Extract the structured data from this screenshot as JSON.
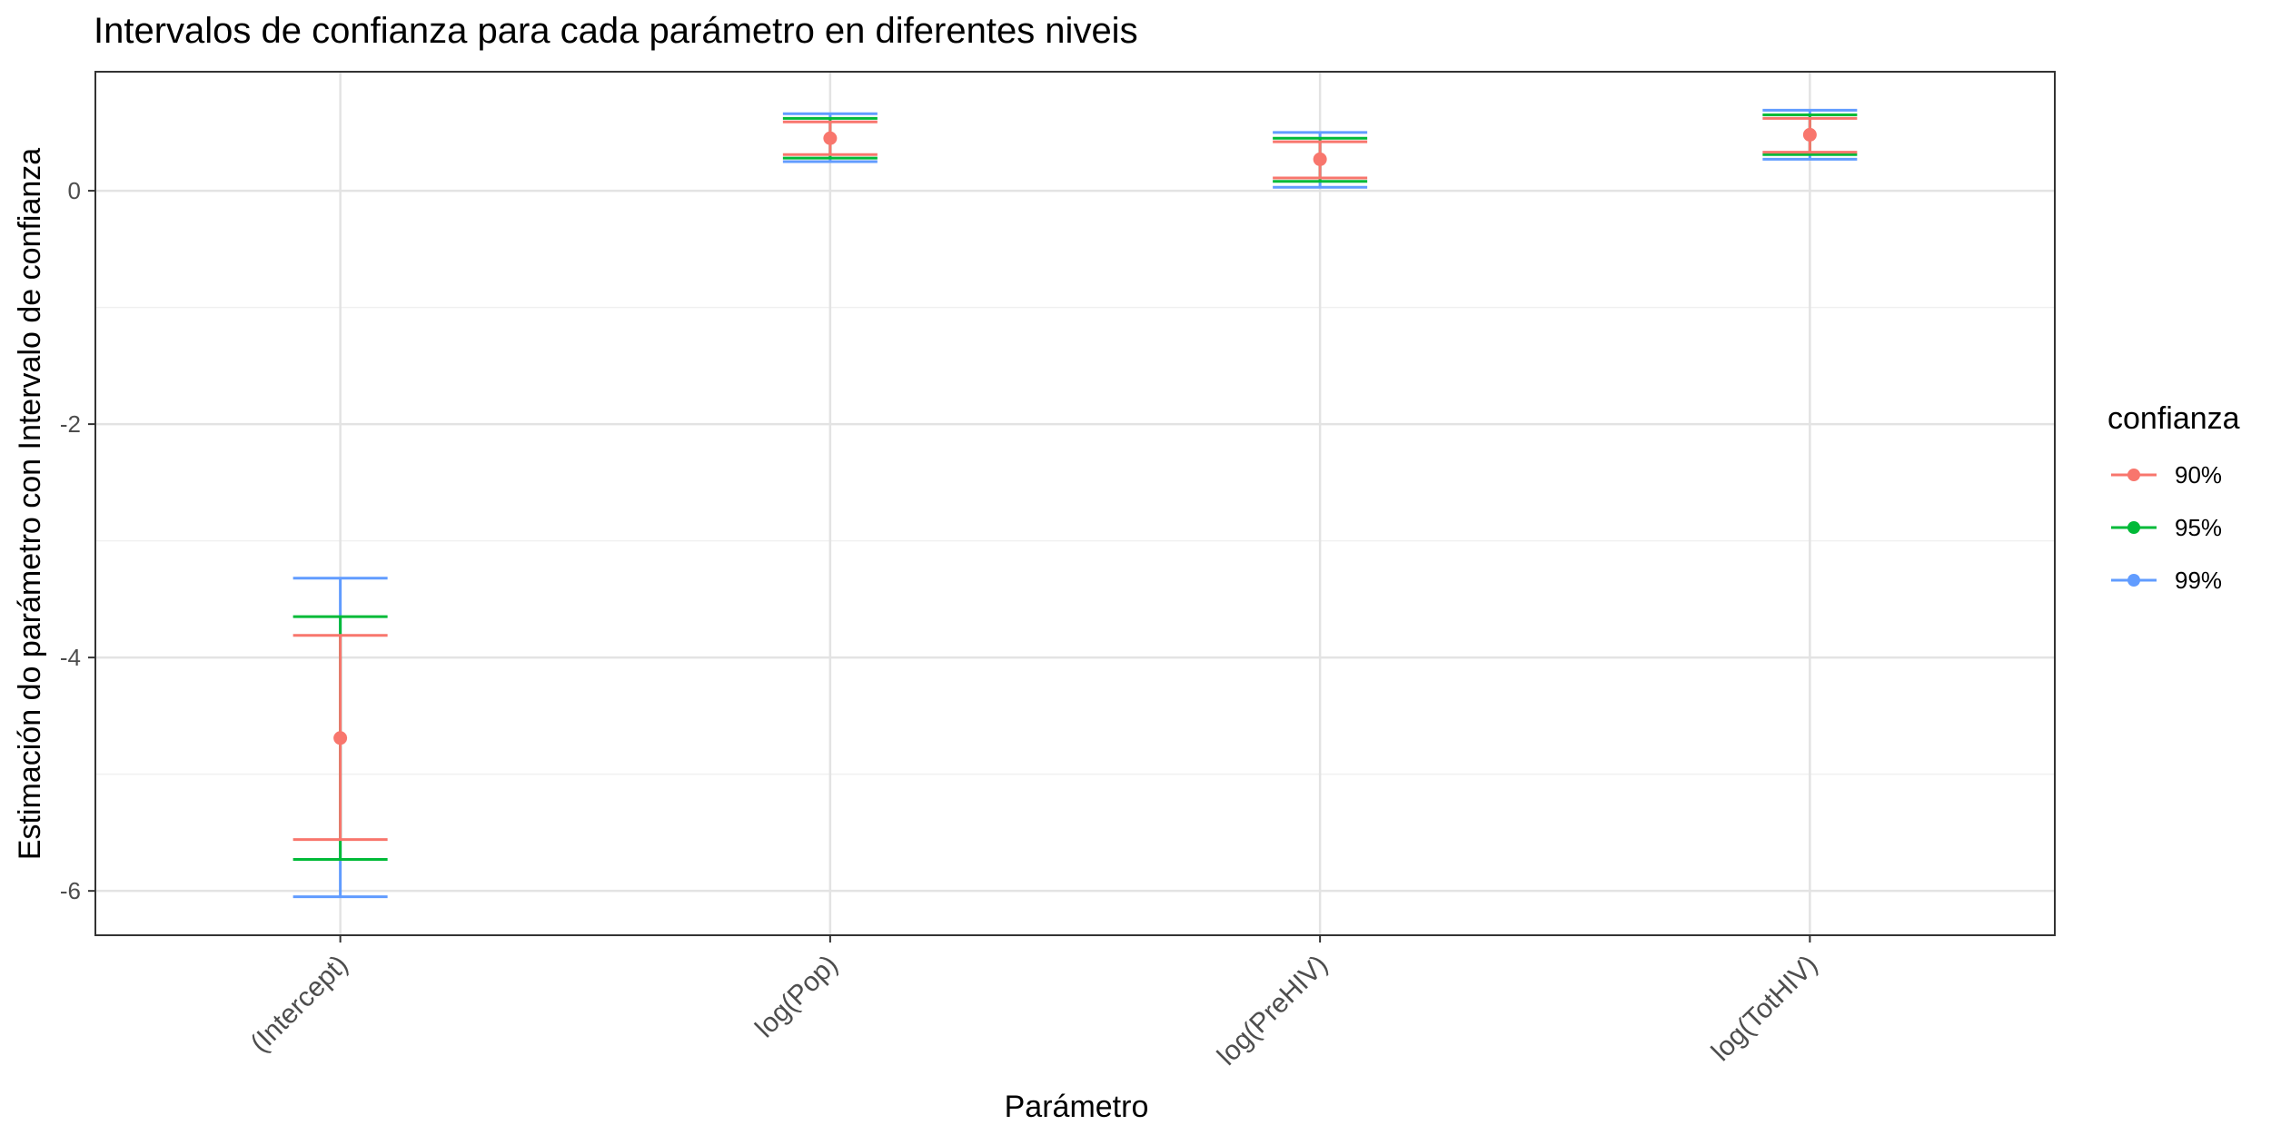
{
  "chart_data": {
    "type": "errorbar",
    "title": "Intervalos de confianza para cada parámetro en diferentes niveis",
    "xlabel": "Parámetro",
    "ylabel": "Estimación do parámetro con Intervalo de confianza",
    "categories": [
      "(Intercept)",
      "log(Pop)",
      "log(PreHIV)",
      "log(TotHIV)"
    ],
    "ylim": [
      -6.38,
      1.02
    ],
    "yticks": [
      -6,
      -4,
      -2,
      0
    ],
    "ytick_labels": [
      "-6",
      "-4",
      "-2",
      "0"
    ],
    "grid": true,
    "legend": {
      "title": "confianza",
      "position": "right"
    },
    "series": [
      {
        "name": "90%",
        "color": "#F8766D",
        "estimate": [
          -4.69,
          0.45,
          0.27,
          0.48
        ],
        "lower": [
          -5.56,
          0.31,
          0.11,
          0.33
        ],
        "upper": [
          -3.81,
          0.59,
          0.42,
          0.62
        ]
      },
      {
        "name": "95%",
        "color": "#00BA38",
        "estimate": [
          -4.69,
          0.45,
          0.27,
          0.48
        ],
        "lower": [
          -5.73,
          0.28,
          0.08,
          0.31
        ],
        "upper": [
          -3.65,
          0.62,
          0.45,
          0.65
        ]
      },
      {
        "name": "99%",
        "color": "#619CFF",
        "estimate": [
          -4.69,
          0.45,
          0.27,
          0.48
        ],
        "lower": [
          -6.05,
          0.25,
          0.03,
          0.27
        ],
        "upper": [
          -3.32,
          0.66,
          0.5,
          0.69
        ]
      }
    ]
  }
}
